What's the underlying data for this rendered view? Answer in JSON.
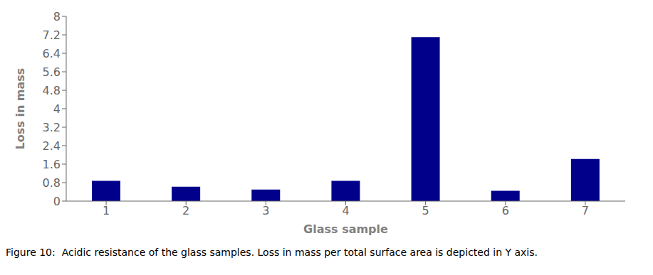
{
  "chart_data": {
    "type": "bar",
    "xlabel": "Glass sample",
    "ylabel": "Loss in mass",
    "caption": "Figure 10:  Acidic resistance of the glass samples. Loss in mass per total surface area is depicted in Y axis.",
    "categories": [
      1,
      2,
      3,
      4,
      5,
      6,
      7
    ],
    "values": [
      0.88,
      0.62,
      0.5,
      0.88,
      7.1,
      0.45,
      1.82
    ],
    "color": "#00008B",
    "ylim": [
      0,
      8
    ],
    "yticks": [
      0,
      0.8,
      1.6,
      2.4,
      3.2,
      4,
      4.8,
      5.6,
      6.4,
      7.2,
      8
    ],
    "grid": false
  }
}
